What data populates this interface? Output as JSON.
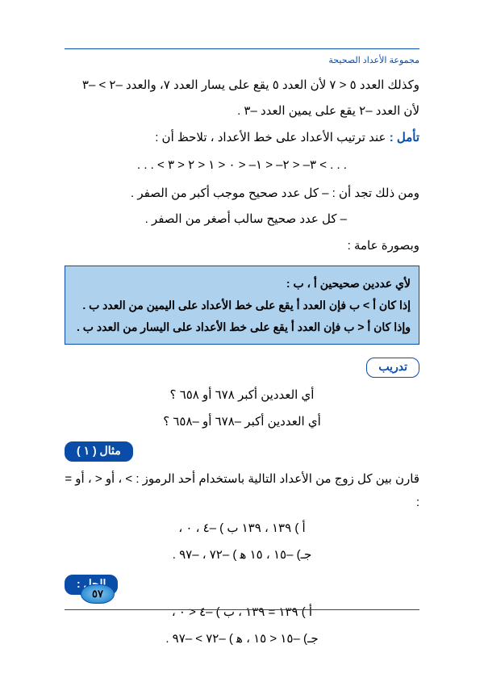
{
  "header": {
    "title": "مجموعة الأعداد الصحيحة"
  },
  "intro": {
    "line1": "وكذلك العدد ٥ < ٧ لأن العدد ٥ يقع على يسار العدد ٧، والعدد –٢ > –٣",
    "line2": "لأن العدد –٢ يقع على يمين العدد –٣ ."
  },
  "reflect": {
    "label": "تأمل :",
    "text": "عند ترتيب الأعداد على خط الأعداد ، تلاحظ أن :",
    "sequence": ". . . < ٣– < ٢– < ١– < ٠ < ١ < ٢ < ٣ < . . .",
    "conc1": "ومن ذلك تجد أن : – كل عدد صحيح موجب أكبر من الصفر .",
    "conc2": "– كل عدد صحيح سالب أصغر من الصفر ."
  },
  "general": {
    "lead": "وبصورة عامة :"
  },
  "rulebox": {
    "line1": "لأي عددين صحيحين أ ، ب :",
    "line2": "إذا كان أ > ب  فإن العدد أ  يقع على خط الأعداد على اليمين من العدد ب .",
    "line3": "وإذا كان أ < ب  فإن العدد أ  يقع على خط الأعداد على اليسار من العدد ب ."
  },
  "train": {
    "pill": "تدريب",
    "q1": "أي العددين أكبر  ٦٧٨   أو  ٦٥٨ ؟",
    "q2": "أي العددين أكبر –٦٧٨  أو  –٦٥٨ ؟"
  },
  "example": {
    "pill": "مثال ( ١ )",
    "prompt": "قارن بين كل زوج من الأعداد التالية باستخدام أحد الرموز : > ، أو < ، أو = :",
    "rowA": "أ ) ١٣٩ ، ١٣٩        ب ) –٤ ، ٠  ،",
    "rowB": "جـ) –١٥ ، ١٥       ﻫ  ) –٧٢ ، –٩٧  ."
  },
  "solution": {
    "pill": "الحل :",
    "rowA": "أ ) ١٣٩ = ١٣٩         ،       ب ) –٤ < ٠         ،",
    "rowB": "جـ) –١٥ < ١٥         ،       ﻫ  ) –٧٢ > –٩٧   ."
  },
  "page_number": "٥٧"
}
